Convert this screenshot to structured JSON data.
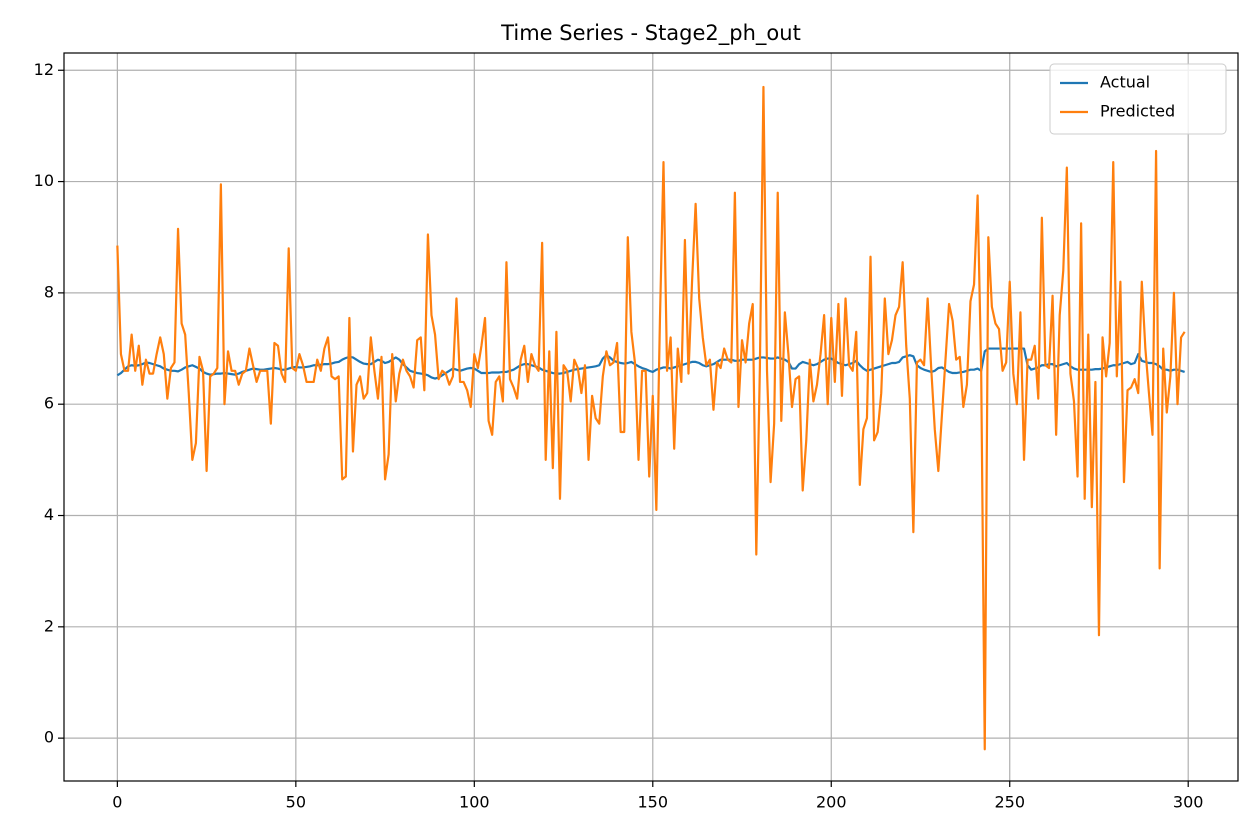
{
  "chart_data": {
    "type": "line",
    "title": "Time Series - Stage2_ph_out",
    "x": [
      0,
      1,
      2,
      3,
      4,
      5,
      6,
      7,
      8,
      9,
      10,
      11,
      12,
      13,
      14,
      15,
      16,
      17,
      18,
      19,
      20,
      21,
      22,
      23,
      24,
      25,
      26,
      27,
      28,
      29,
      30,
      31,
      32,
      33,
      34,
      35,
      36,
      37,
      38,
      39,
      40,
      41,
      42,
      43,
      44,
      45,
      46,
      47,
      48,
      49,
      50,
      51,
      52,
      53,
      54,
      55,
      56,
      57,
      58,
      59,
      60,
      61,
      62,
      63,
      64,
      65,
      66,
      67,
      68,
      69,
      70,
      71,
      72,
      73,
      74,
      75,
      76,
      77,
      78,
      79,
      80,
      81,
      82,
      83,
      84,
      85,
      86,
      87,
      88,
      89,
      90,
      91,
      92,
      93,
      94,
      95,
      96,
      97,
      98,
      99,
      100,
      101,
      102,
      103,
      104,
      105,
      106,
      107,
      108,
      109,
      110,
      111,
      112,
      113,
      114,
      115,
      116,
      117,
      118,
      119,
      120,
      121,
      122,
      123,
      124,
      125,
      126,
      127,
      128,
      129,
      130,
      131,
      132,
      133,
      134,
      135,
      136,
      137,
      138,
      139,
      140,
      141,
      142,
      143,
      144,
      145,
      146,
      147,
      148,
      149,
      150,
      151,
      152,
      153,
      154,
      155,
      156,
      157,
      158,
      159,
      160,
      161,
      162,
      163,
      164,
      165,
      166,
      167,
      168,
      169,
      170,
      171,
      172,
      173,
      174,
      175,
      176,
      177,
      178,
      179,
      180,
      181,
      182,
      183,
      184,
      185,
      186,
      187,
      188,
      189,
      190,
      191,
      192,
      193,
      194,
      195,
      196,
      197,
      198,
      199,
      200,
      201,
      202,
      203,
      204,
      205,
      206,
      207,
      208,
      209,
      210,
      211,
      212,
      213,
      214,
      215,
      216,
      217,
      218,
      219,
      220,
      221,
      222,
      223,
      224,
      225,
      226,
      227,
      228,
      229,
      230,
      231,
      232,
      233,
      234,
      235,
      236,
      237,
      238,
      239,
      240,
      241,
      242,
      243,
      244,
      245,
      246,
      247,
      248,
      249,
      250,
      251,
      252,
      253,
      254,
      255,
      256,
      257,
      258,
      259,
      260,
      261,
      262,
      263,
      264,
      265,
      266,
      267,
      268,
      269,
      270,
      271,
      272,
      273,
      274,
      275,
      276,
      277,
      278,
      279,
      280,
      281,
      282,
      283,
      284,
      285,
      286,
      287,
      288,
      289,
      290,
      291,
      292,
      293,
      294,
      295,
      296,
      297,
      298,
      299
    ],
    "series": [
      {
        "name": "Actual",
        "color": "#1f77b4",
        "values": [
          6.52,
          6.56,
          6.62,
          6.68,
          6.7,
          6.69,
          6.7,
          6.72,
          6.75,
          6.74,
          6.72,
          6.7,
          6.68,
          6.64,
          6.62,
          6.6,
          6.6,
          6.59,
          6.62,
          6.66,
          6.68,
          6.7,
          6.67,
          6.64,
          6.58,
          6.55,
          6.53,
          6.54,
          6.55,
          6.55,
          6.56,
          6.55,
          6.54,
          6.53,
          6.55,
          6.58,
          6.6,
          6.62,
          6.64,
          6.63,
          6.62,
          6.62,
          6.63,
          6.64,
          6.65,
          6.64,
          6.62,
          6.62,
          6.64,
          6.66,
          6.67,
          6.66,
          6.66,
          6.67,
          6.68,
          6.7,
          6.7,
          6.71,
          6.72,
          6.72,
          6.73,
          6.75,
          6.76,
          6.8,
          6.83,
          6.85,
          6.84,
          6.8,
          6.76,
          6.73,
          6.72,
          6.72,
          6.76,
          6.8,
          6.78,
          6.74,
          6.76,
          6.8,
          6.84,
          6.8,
          6.72,
          6.66,
          6.6,
          6.58,
          6.56,
          6.55,
          6.54,
          6.52,
          6.48,
          6.46,
          6.48,
          6.52,
          6.56,
          6.6,
          6.64,
          6.62,
          6.6,
          6.62,
          6.64,
          6.65,
          6.64,
          6.6,
          6.56,
          6.56,
          6.56,
          6.57,
          6.57,
          6.57,
          6.58,
          6.58,
          6.6,
          6.62,
          6.66,
          6.7,
          6.72,
          6.72,
          6.7,
          6.68,
          6.66,
          6.62,
          6.6,
          6.58,
          6.56,
          6.55,
          6.55,
          6.56,
          6.58,
          6.6,
          6.62,
          6.63,
          6.64,
          6.65,
          6.66,
          6.67,
          6.68,
          6.7,
          6.82,
          6.88,
          6.84,
          6.78,
          6.76,
          6.74,
          6.73,
          6.74,
          6.76,
          6.72,
          6.68,
          6.65,
          6.63,
          6.6,
          6.58,
          6.62,
          6.64,
          6.66,
          6.66,
          6.64,
          6.66,
          6.68,
          6.7,
          6.72,
          6.74,
          6.76,
          6.76,
          6.74,
          6.7,
          6.68,
          6.7,
          6.72,
          6.76,
          6.8,
          6.8,
          6.8,
          6.8,
          6.78,
          6.78,
          6.8,
          6.8,
          6.8,
          6.8,
          6.82,
          6.84,
          6.84,
          6.83,
          6.82,
          6.82,
          6.84,
          6.82,
          6.8,
          6.76,
          6.64,
          6.64,
          6.72,
          6.76,
          6.74,
          6.72,
          6.7,
          6.72,
          6.76,
          6.8,
          6.82,
          6.82,
          6.78,
          6.74,
          6.72,
          6.7,
          6.72,
          6.74,
          6.78,
          6.7,
          6.64,
          6.6,
          6.62,
          6.64,
          6.66,
          6.68,
          6.7,
          6.72,
          6.74,
          6.74,
          6.76,
          6.84,
          6.86,
          6.88,
          6.86,
          6.7,
          6.65,
          6.62,
          6.6,
          6.58,
          6.6,
          6.65,
          6.66,
          6.62,
          6.58,
          6.56,
          6.56,
          6.57,
          6.58,
          6.6,
          6.62,
          6.62,
          6.64,
          6.6,
          6.95,
          7.0,
          7.0,
          7.0,
          7.0,
          7.0,
          7.0,
          7.0,
          7.0,
          7.0,
          7.0,
          7.0,
          6.7,
          6.62,
          6.64,
          6.66,
          6.7,
          6.7,
          6.72,
          6.72,
          6.68,
          6.7,
          6.72,
          6.74,
          6.68,
          6.64,
          6.62,
          6.62,
          6.62,
          6.62,
          6.62,
          6.63,
          6.63,
          6.64,
          6.66,
          6.68,
          6.7,
          6.7,
          6.72,
          6.74,
          6.76,
          6.72,
          6.74,
          6.9,
          6.78,
          6.76,
          6.74,
          6.74,
          6.72,
          6.68,
          6.62,
          6.62,
          6.6,
          6.62,
          6.62,
          6.6,
          6.58
        ]
      },
      {
        "name": "Predicted",
        "color": "#ff7f0e",
        "values": [
          8.85,
          6.9,
          6.6,
          6.6,
          7.25,
          6.6,
          7.05,
          6.35,
          6.8,
          6.55,
          6.55,
          6.9,
          7.2,
          6.9,
          6.1,
          6.65,
          6.75,
          9.15,
          7.45,
          7.25,
          6.2,
          5.0,
          5.3,
          6.85,
          6.6,
          4.8,
          6.5,
          6.55,
          6.65,
          9.95,
          6.0,
          6.95,
          6.6,
          6.6,
          6.35,
          6.55,
          6.6,
          7.0,
          6.7,
          6.4,
          6.6,
          6.6,
          6.6,
          5.65,
          7.1,
          7.05,
          6.55,
          6.4,
          8.8,
          6.65,
          6.6,
          6.9,
          6.7,
          6.4,
          6.4,
          6.4,
          6.8,
          6.6,
          7.0,
          7.2,
          6.5,
          6.45,
          6.5,
          4.65,
          4.7,
          7.55,
          5.15,
          6.35,
          6.5,
          6.1,
          6.2,
          7.2,
          6.6,
          6.1,
          6.85,
          4.65,
          5.1,
          6.9,
          6.05,
          6.55,
          6.8,
          6.6,
          6.5,
          6.3,
          7.15,
          7.2,
          6.25,
          9.05,
          7.6,
          7.25,
          6.45,
          6.6,
          6.55,
          6.35,
          6.5,
          7.9,
          6.4,
          6.4,
          6.25,
          5.95,
          6.9,
          6.65,
          7.05,
          7.55,
          5.7,
          5.45,
          6.4,
          6.5,
          6.05,
          8.55,
          6.45,
          6.3,
          6.1,
          6.8,
          7.05,
          6.4,
          6.9,
          6.7,
          6.6,
          8.9,
          5.0,
          6.95,
          4.85,
          7.3,
          4.3,
          6.7,
          6.6,
          6.05,
          6.8,
          6.65,
          6.2,
          6.7,
          5.0,
          6.15,
          5.75,
          5.65,
          6.5,
          6.95,
          6.7,
          6.75,
          7.1,
          5.5,
          5.5,
          9.0,
          7.3,
          6.75,
          5.0,
          6.6,
          6.6,
          4.7,
          6.15,
          4.1,
          7.5,
          10.35,
          6.6,
          7.2,
          5.2,
          7.0,
          6.4,
          8.95,
          6.55,
          8.2,
          9.6,
          7.9,
          7.2,
          6.7,
          6.8,
          5.9,
          6.75,
          6.65,
          7.0,
          6.8,
          6.75,
          9.8,
          5.95,
          7.15,
          6.75,
          7.45,
          7.8,
          3.3,
          6.65,
          11.7,
          6.6,
          4.6,
          5.65,
          9.8,
          5.7,
          7.65,
          6.9,
          5.95,
          6.45,
          6.5,
          4.45,
          5.35,
          6.8,
          6.05,
          6.35,
          6.9,
          7.6,
          6.0,
          7.55,
          6.4,
          7.8,
          6.15,
          7.9,
          6.7,
          6.6,
          7.3,
          4.55,
          5.55,
          5.75,
          8.65,
          5.35,
          5.5,
          6.2,
          7.9,
          6.9,
          7.15,
          7.6,
          7.75,
          8.55,
          7.05,
          6.1,
          3.7,
          6.75,
          6.8,
          6.7,
          7.9,
          6.65,
          5.55,
          4.8,
          5.8,
          6.8,
          7.8,
          7.5,
          6.8,
          6.85,
          5.95,
          6.35,
          7.85,
          8.15,
          9.75,
          6.6,
          -0.2,
          9.0,
          7.75,
          7.45,
          7.35,
          6.6,
          6.75,
          8.2,
          6.55,
          6.0,
          7.65,
          5.0,
          6.8,
          6.8,
          7.05,
          6.1,
          9.35,
          6.7,
          6.65,
          7.95,
          5.45,
          7.6,
          8.4,
          10.25,
          6.55,
          6.05,
          4.7,
          9.25,
          4.3,
          7.25,
          4.15,
          6.4,
          1.85,
          7.2,
          6.5,
          7.1,
          10.35,
          6.5,
          8.2,
          4.6,
          6.25,
          6.3,
          6.45,
          6.2,
          8.2,
          7.0,
          6.2,
          5.45,
          10.55,
          3.05,
          7.0,
          5.85,
          6.5,
          8.0,
          6.0,
          7.2,
          7.3
        ]
      }
    ],
    "xlim": [
      -14.95,
      313.95
    ],
    "ylim": [
      -0.77,
      12.31
    ],
    "xticks": [
      0,
      50,
      100,
      150,
      200,
      250,
      300
    ],
    "yticks": [
      0,
      2,
      4,
      6,
      8,
      10,
      12
    ],
    "grid": true,
    "legend": "upper right"
  }
}
